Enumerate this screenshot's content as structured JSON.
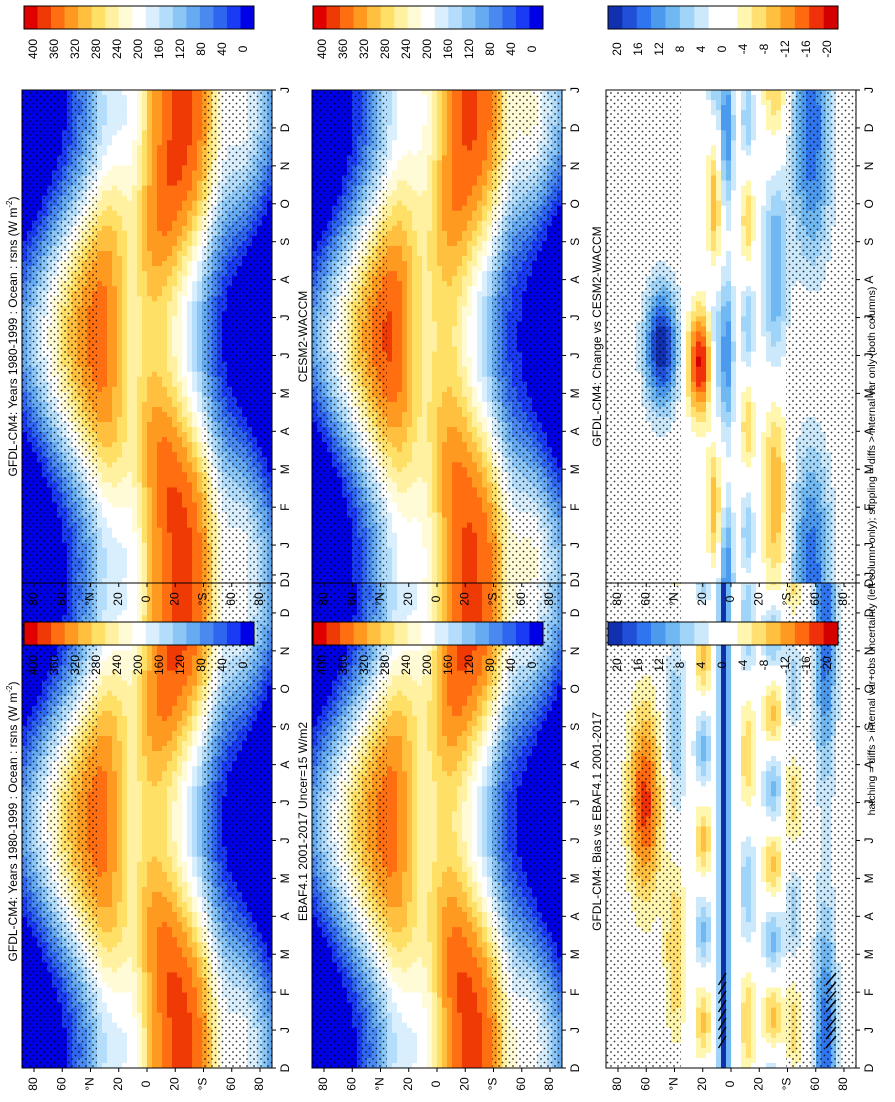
{
  "footnote": "hatching = diffs > internal var+obs uncertainty (left column only); stippling = diffs > internal var only (both columns)",
  "colors": {
    "abs_scale": [
      "#0000e6",
      "#1a3bf5",
      "#2f66f0",
      "#4a8af0",
      "#66aaf2",
      "#8cc6f7",
      "#b3ddfb",
      "#d9effd",
      "#ffffff",
      "#fffbd6",
      "#fff1a0",
      "#ffe066",
      "#ffc040",
      "#ff9a20",
      "#ff6e10",
      "#f03a05",
      "#e00000"
    ],
    "diff_scale": [
      "#1030b0",
      "#2050d8",
      "#3075f0",
      "#4c9aee",
      "#70b8f2",
      "#a0d4f8",
      "#cce8fb",
      "#ffffff",
      "#ffffff",
      "#fff6b0",
      "#ffe070",
      "#ffc040",
      "#ff9a20",
      "#ff6a10",
      "#f03008",
      "#d40000"
    ],
    "hatch": "#000000",
    "stipple": "#000000"
  },
  "chart_data": [
    {
      "id": "panel-cm4-left",
      "type": "heatmap",
      "title": "GFDL-CM4: Years 1980-1999 : Ocean : rsns (W m",
      "title_sup": "-2",
      "title_end": ")",
      "field": "abs",
      "model": "cm4",
      "hatch": false,
      "month_ticks": [
        "D",
        "J",
        "F",
        "M",
        "A",
        "M",
        "J",
        "J",
        "A",
        "S",
        "O",
        "N",
        "D",
        "J"
      ],
      "lat_ticks": [
        "80",
        "60",
        "°N",
        "20",
        "0",
        "20",
        "°S",
        "60",
        "80"
      ],
      "lat_range": [
        -90,
        90
      ],
      "colorbar_ticks": [
        "400",
        "360",
        "320",
        "280",
        "240",
        "200",
        "160",
        "120",
        "80",
        "40",
        "0"
      ],
      "colorbar_range": [
        0,
        420
      ]
    },
    {
      "id": "panel-cm4-right",
      "type": "heatmap",
      "title": "GFDL-CM4: Years 1980-1999 : Ocean : rsns (W m",
      "title_sup": "-2",
      "title_end": ")",
      "field": "abs",
      "model": "cm4",
      "hatch": false,
      "month_ticks": [
        "D",
        "J",
        "F",
        "M",
        "A",
        "M",
        "J",
        "J",
        "A",
        "S",
        "O",
        "N",
        "D",
        "J"
      ],
      "lat_ticks": [
        "80",
        "60",
        "°N",
        "20",
        "0",
        "20",
        "°S",
        "60",
        "80"
      ],
      "lat_range": [
        -90,
        90
      ],
      "colorbar_ticks": [
        "400",
        "360",
        "320",
        "280",
        "240",
        "200",
        "160",
        "120",
        "80",
        "40",
        "0"
      ],
      "colorbar_range": [
        0,
        420
      ]
    },
    {
      "id": "panel-ebaf",
      "type": "heatmap",
      "title": "EBAF4.1 2001-2017 Uncer=15 W/m2",
      "title_sup": "",
      "title_end": "",
      "field": "abs",
      "model": "obs",
      "hatch": false,
      "month_ticks": [
        "D",
        "J",
        "F",
        "M",
        "A",
        "M",
        "J",
        "J",
        "A",
        "S",
        "O",
        "N",
        "D",
        "J"
      ],
      "lat_ticks": [
        "80",
        "60",
        "°N",
        "20",
        "0",
        "20",
        "°S",
        "60",
        "80"
      ],
      "lat_range": [
        -90,
        90
      ],
      "colorbar_ticks": [
        "400",
        "360",
        "320",
        "280",
        "240",
        "200",
        "160",
        "120",
        "80",
        "40",
        "0"
      ],
      "colorbar_range": [
        0,
        420
      ]
    },
    {
      "id": "panel-cesm2",
      "type": "heatmap",
      "title": "CESM2-WACCM",
      "title_sup": "",
      "title_end": "",
      "field": "abs",
      "model": "cesm",
      "hatch": false,
      "month_ticks": [
        "D",
        "J",
        "F",
        "M",
        "A",
        "M",
        "J",
        "J",
        "A",
        "S",
        "O",
        "N",
        "D",
        "J"
      ],
      "lat_ticks": [
        "80",
        "60",
        "°N",
        "20",
        "0",
        "20",
        "°S",
        "60",
        "80"
      ],
      "lat_range": [
        -90,
        90
      ],
      "colorbar_ticks": [
        "400",
        "360",
        "320",
        "280",
        "240",
        "200",
        "160",
        "120",
        "80",
        "40",
        "0"
      ],
      "colorbar_range": [
        0,
        420
      ]
    },
    {
      "id": "panel-bias",
      "type": "heatmap",
      "title": "GFDL-CM4: Bias vs EBAF4.1 2001-2017",
      "title_sup": "",
      "title_end": "",
      "field": "bias",
      "model": "",
      "hatch": true,
      "month_ticks": [
        "D",
        "J",
        "F",
        "M",
        "A",
        "M",
        "J",
        "J",
        "A",
        "S",
        "O",
        "N",
        "D",
        "J"
      ],
      "lat_ticks": [
        "80",
        "60",
        "°N",
        "20",
        "0",
        "20",
        "°S",
        "60",
        "80"
      ],
      "lat_range": [
        -90,
        90
      ],
      "colorbar_ticks": [
        "20",
        "16",
        "12",
        "8",
        "4",
        "0",
        "-4",
        "-8",
        "-12",
        "-16",
        "-20"
      ],
      "colorbar_range": [
        -22,
        22
      ]
    },
    {
      "id": "panel-change",
      "type": "heatmap",
      "title": "GFDL-CM4: Change vs CESM2-WACCM",
      "title_sup": "",
      "title_end": "",
      "field": "change",
      "model": "",
      "hatch": false,
      "month_ticks": [
        "D",
        "J",
        "F",
        "M",
        "A",
        "M",
        "J",
        "J",
        "A",
        "S",
        "O",
        "N",
        "D",
        "J"
      ],
      "lat_ticks": [
        "80",
        "60",
        "°N",
        "20",
        "0",
        "20",
        "°S",
        "60",
        "80"
      ],
      "lat_range": [
        -90,
        90
      ],
      "colorbar_ticks": [
        "20",
        "16",
        "12",
        "8",
        "4",
        "0",
        "-4",
        "-8",
        "-12",
        "-16",
        "-20"
      ],
      "colorbar_range": [
        -22,
        22
      ]
    }
  ]
}
